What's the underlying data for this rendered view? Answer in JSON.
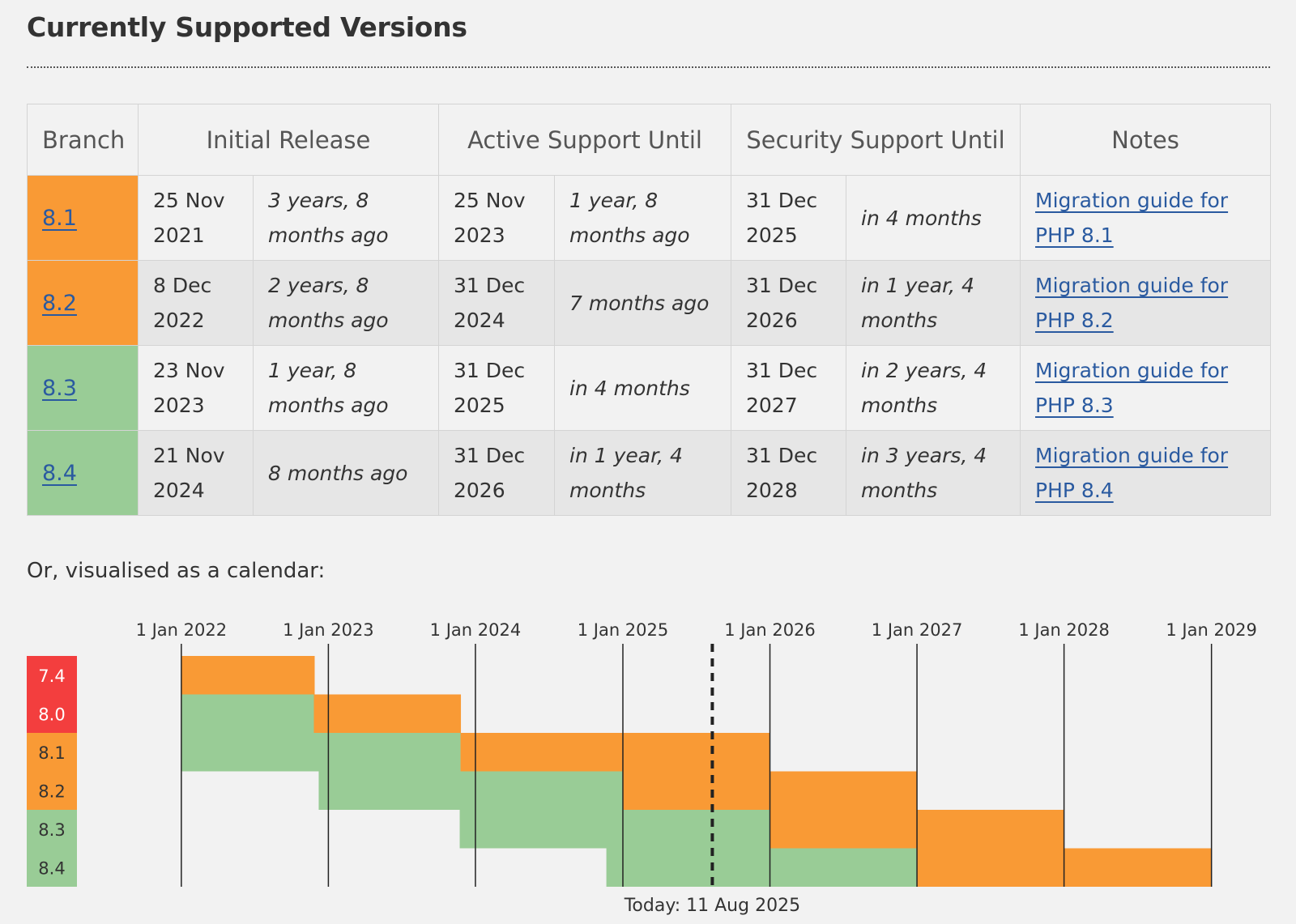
{
  "section_title": "Currently Supported Versions",
  "table": {
    "headers": {
      "branch": "Branch",
      "initial_release": "Initial Release",
      "active_support": "Active Support Until",
      "security_support": "Security Support Until",
      "notes": "Notes"
    },
    "rows": [
      {
        "branch": "8.1",
        "status": "security",
        "initial_date": "25 Nov 2021",
        "initial_rel": "3 years, 8 months ago",
        "active_date": "25 Nov 2023",
        "active_rel": "1 year, 8 months ago",
        "security_date": "31 Dec 2025",
        "security_rel": "in 4 months",
        "note": "Migration guide for PHP 8.1"
      },
      {
        "branch": "8.2",
        "status": "security",
        "initial_date": "8 Dec 2022",
        "initial_rel": "2 years, 8 months ago",
        "active_date": "31 Dec 2024",
        "active_rel": "7 months ago",
        "security_date": "31 Dec 2026",
        "security_rel": "in 1 year, 4 months",
        "note": "Migration guide for PHP 8.2"
      },
      {
        "branch": "8.3",
        "status": "active",
        "initial_date": "23 Nov 2023",
        "initial_rel": "1 year, 8 months ago",
        "active_date": "31 Dec 2025",
        "active_rel": "in 4 months",
        "security_date": "31 Dec 2027",
        "security_rel": "in 2 years, 4 months",
        "note": "Migration guide for PHP 8.3"
      },
      {
        "branch": "8.4",
        "status": "active",
        "initial_date": "21 Nov 2024",
        "initial_rel": "8 months ago",
        "active_date": "31 Dec 2026",
        "active_rel": "in 1 year, 4 months",
        "security_date": "31 Dec 2028",
        "security_rel": "in 3 years, 4 months",
        "note": "Migration guide for PHP 8.4"
      }
    ]
  },
  "calendar_intro": "Or, visualised as a calendar:",
  "colors": {
    "eol": "#f33e3e",
    "security": "#f99a35",
    "active": "#99cc96",
    "link": "#2a5aa0"
  },
  "chart_data": {
    "type": "timeline",
    "x_ticks": [
      "1 Jan 2022",
      "1 Jan 2023",
      "1 Jan 2024",
      "1 Jan 2025",
      "1 Jan 2026",
      "1 Jan 2027",
      "1 Jan 2028",
      "1 Jan 2029"
    ],
    "x_range": [
      "2021-05-01",
      "2029-03-01"
    ],
    "today": "2025-08-11",
    "today_label": "Today: 11 Aug 2025",
    "branches": [
      {
        "name": "7.4",
        "status": "eol",
        "release": null,
        "active_until": "2022-11-28",
        "security_until": "2022-11-28"
      },
      {
        "name": "8.0",
        "status": "eol",
        "release": "2022-01-01",
        "active_until": "2022-11-26",
        "security_until": "2023-11-26"
      },
      {
        "name": "8.1",
        "status": "security",
        "release": "2022-01-01",
        "active_until": "2023-11-25",
        "security_until": "2025-12-31"
      },
      {
        "name": "8.2",
        "status": "security",
        "release": "2022-12-08",
        "active_until": "2024-12-31",
        "security_until": "2026-12-31"
      },
      {
        "name": "8.3",
        "status": "active",
        "release": "2023-11-23",
        "active_until": "2025-12-31",
        "security_until": "2027-12-31"
      },
      {
        "name": "8.4",
        "status": "active",
        "release": "2024-11-21",
        "active_until": "2026-12-31",
        "security_until": "2028-12-31"
      }
    ]
  }
}
